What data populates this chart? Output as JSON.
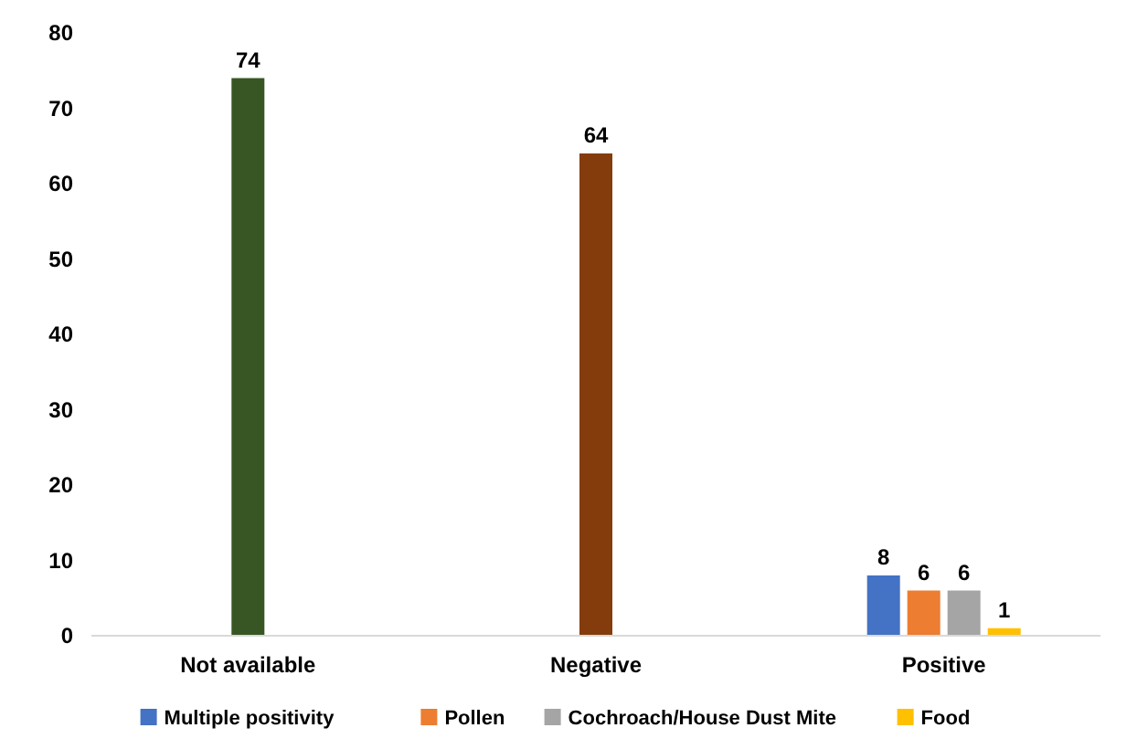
{
  "chart_data": {
    "type": "bar",
    "categories": [
      "Not available",
      "Negative",
      "Positive"
    ],
    "series": [
      {
        "color": "#375623",
        "values": [
          74,
          null,
          null
        ]
      },
      {
        "color": "#843c0c",
        "values": [
          null,
          64,
          null
        ]
      },
      {
        "name": "Multiple positivity",
        "color": "#4472c4",
        "values": [
          null,
          null,
          8
        ]
      },
      {
        "name": "Pollen",
        "color": "#ed7d31",
        "values": [
          null,
          null,
          6
        ]
      },
      {
        "name": "Cochroach/House Dust Mite",
        "color": "#a5a5a5",
        "values": [
          null,
          null,
          6
        ]
      },
      {
        "name": "Food",
        "color": "#ffc000",
        "values": [
          null,
          null,
          1
        ]
      }
    ],
    "ylim": [
      0,
      80
    ],
    "yticks": [
      0,
      10,
      20,
      30,
      40,
      50,
      60,
      70,
      80
    ],
    "grid": false,
    "legend": "bottom",
    "data_labels": true
  }
}
